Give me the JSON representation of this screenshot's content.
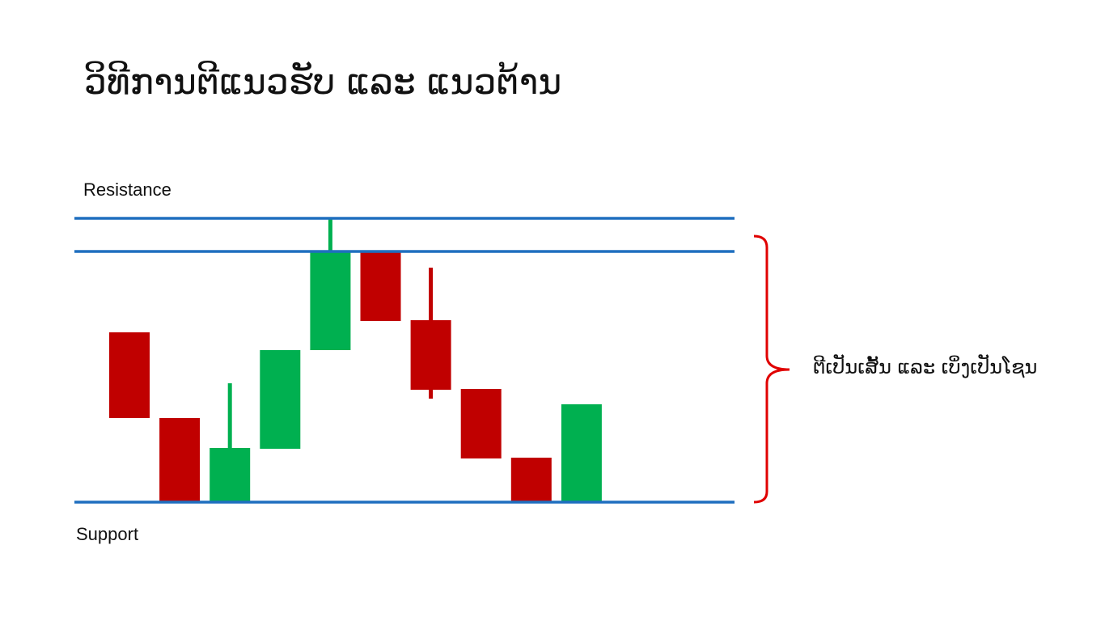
{
  "title": "ວິທີການຕີແນວຮັບ ແລະ ແນວຕ້ານ",
  "labels": {
    "resistance": "Resistance",
    "support": "Support",
    "annotation": "ຕີເປັນເສັ້ນ ແລະ ເບິ່ງເປັນໂຊນ"
  },
  "colors": {
    "line": "#1f6fbf",
    "bullish": "#00b050",
    "bearish": "#c00000",
    "brace": "#e00000"
  },
  "candles": [
    {
      "dir": "bearish",
      "open": 210,
      "close": 104
    },
    {
      "dir": "bearish",
      "open": 104,
      "close": 0
    },
    {
      "dir": "bullish",
      "open": 0,
      "close": 67,
      "high": 147
    },
    {
      "dir": "bullish",
      "open": 66,
      "close": 188
    },
    {
      "dir": "bullish",
      "open": 188,
      "close": 310,
      "high": 350
    },
    {
      "dir": "bearish",
      "open": 310,
      "close": 224
    },
    {
      "dir": "bearish",
      "open": 225,
      "close": 139,
      "high": 290,
      "low": 128
    },
    {
      "dir": "bearish",
      "open": 140,
      "close": 54
    },
    {
      "dir": "bearish",
      "open": 55,
      "close": 0
    },
    {
      "dir": "bullish",
      "open": 0,
      "close": 121
    }
  ],
  "levels": {
    "support": 0,
    "resistance_low": 310,
    "resistance_high": 351
  }
}
